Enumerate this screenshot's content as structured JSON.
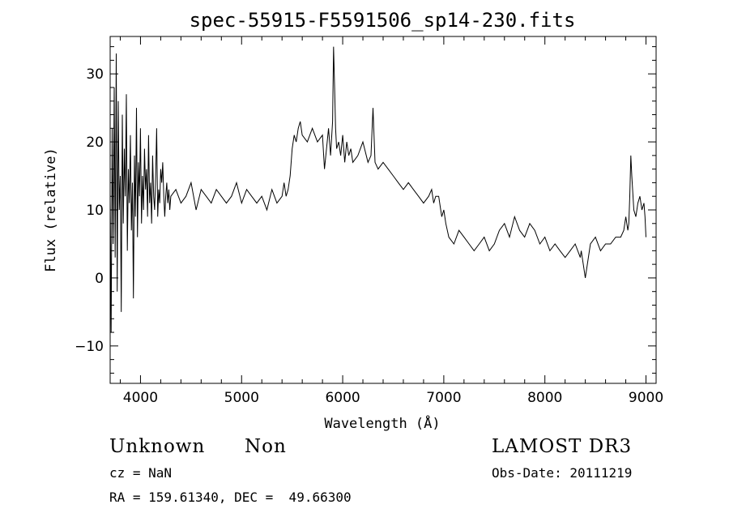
{
  "chart_data": {
    "type": "line",
    "title": "spec-55915-F5591506_sp14-230.fits",
    "xlabel": "Wavelength (Å)",
    "ylabel": "Flux (relative)",
    "xlim": [
      3700,
      9100
    ],
    "ylim": [
      -15.5,
      35.5
    ],
    "xticks": [
      4000,
      5000,
      6000,
      7000,
      8000,
      9000
    ],
    "yticks": [
      -10,
      0,
      10,
      20,
      30
    ],
    "grid": false,
    "series": [
      {
        "x": [
          3700,
          3710,
          3720,
          3730,
          3740,
          3750,
          3760,
          3770,
          3780,
          3790,
          3800,
          3810,
          3820,
          3830,
          3840,
          3850,
          3860,
          3870,
          3880,
          3890,
          3900,
          3910,
          3920,
          3930,
          3940,
          3950,
          3960,
          3970,
          3980,
          3990,
          4000,
          4010,
          4020,
          4030,
          4040,
          4050,
          4060,
          4070,
          4080,
          4090,
          4100,
          4110,
          4120,
          4130,
          4140,
          4150,
          4160,
          4170,
          4180,
          4190,
          4200,
          4210,
          4220,
          4230,
          4240,
          4250,
          4260,
          4270,
          4280,
          4290,
          4300,
          4350,
          4400,
          4450,
          4500,
          4550,
          4600,
          4650,
          4700,
          4750,
          4800,
          4850,
          4900,
          4950,
          5000,
          5050,
          5100,
          5150,
          5200,
          5250,
          5300,
          5350,
          5400,
          5420,
          5440,
          5460,
          5480,
          5500,
          5520,
          5540,
          5560,
          5580,
          5600,
          5650,
          5700,
          5750,
          5800,
          5820,
          5840,
          5860,
          5880,
          5900,
          5910,
          5920,
          5930,
          5940,
          5960,
          5980,
          6000,
          6020,
          6040,
          6060,
          6080,
          6100,
          6150,
          6200,
          6250,
          6280,
          6300,
          6320,
          6350,
          6400,
          6450,
          6500,
          6550,
          6600,
          6650,
          6700,
          6750,
          6800,
          6850,
          6880,
          6900,
          6920,
          6950,
          6970,
          6980,
          7000,
          7020,
          7050,
          7100,
          7150,
          7200,
          7250,
          7300,
          7350,
          7400,
          7450,
          7500,
          7550,
          7600,
          7650,
          7700,
          7750,
          7800,
          7850,
          7900,
          7950,
          8000,
          8050,
          8100,
          8150,
          8200,
          8250,
          8300,
          8350,
          8360,
          8400,
          8450,
          8500,
          8550,
          8600,
          8650,
          8700,
          8750,
          8780,
          8800,
          8820,
          8830,
          8840,
          8850,
          8860,
          8880,
          8900,
          8920,
          8940,
          8960,
          8980,
          8990,
          9000
        ],
        "values": [
          12,
          -8,
          22,
          5,
          28,
          3,
          33,
          -2,
          26,
          10,
          15,
          -5,
          24,
          8,
          19,
          12,
          27,
          4,
          16,
          11,
          21,
          7,
          14,
          -3,
          18,
          9,
          25,
          6,
          17,
          12,
          22,
          8,
          15,
          10,
          19,
          13,
          16,
          9,
          21,
          11,
          14,
          8,
          18,
          12,
          10,
          15,
          22,
          9,
          13,
          11,
          16,
          14,
          17,
          12,
          9,
          12,
          14,
          11,
          13,
          10,
          12,
          13,
          11,
          12,
          14,
          10,
          13,
          12,
          11,
          13,
          12,
          11,
          12,
          14,
          11,
          13,
          12,
          11,
          12,
          10,
          13,
          11,
          12,
          14,
          12,
          13,
          15,
          19,
          21,
          20,
          22,
          23,
          21,
          20,
          22,
          20,
          21,
          16,
          19,
          22,
          18,
          23,
          34,
          28,
          22,
          19,
          20,
          18,
          21,
          17,
          20,
          18,
          19,
          17,
          18,
          20,
          17,
          18,
          25,
          17,
          16,
          17,
          16,
          15,
          14,
          13,
          14,
          13,
          12,
          11,
          12,
          13,
          11,
          12,
          12,
          10,
          9,
          10,
          8,
          6,
          5,
          7,
          6,
          5,
          4,
          5,
          6,
          4,
          5,
          7,
          8,
          6,
          9,
          7,
          6,
          8,
          7,
          5,
          6,
          4,
          5,
          4,
          3,
          4,
          5,
          3,
          4,
          0,
          5,
          6,
          4,
          5,
          5,
          6,
          6,
          7,
          9,
          7,
          8,
          12,
          18,
          15,
          10,
          9,
          11,
          12,
          10,
          11,
          9,
          6
        ]
      }
    ]
  },
  "info": {
    "object_class": "Unknown",
    "subclass": "Non",
    "survey": "LAMOST DR3",
    "redshift": "cz = NaN",
    "obs_date": "Obs-Date: 20111219",
    "coords": "RA = 159.61340, DEC =  49.66300"
  }
}
